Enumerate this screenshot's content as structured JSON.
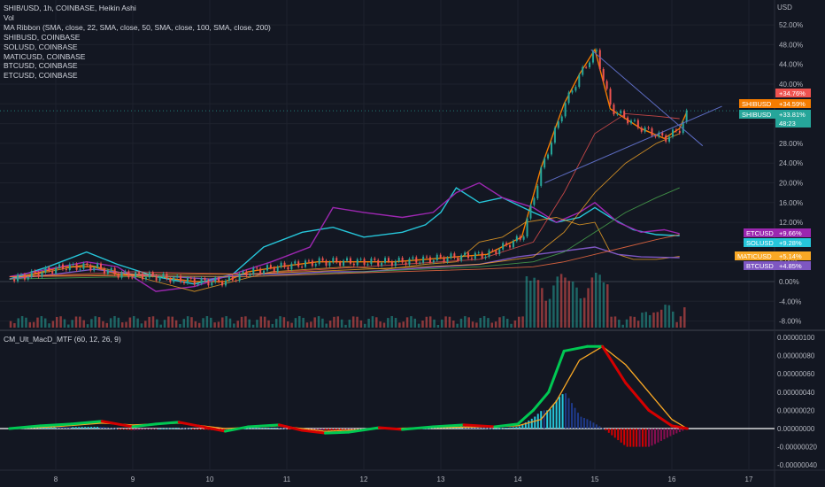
{
  "legend": {
    "main": "SHIB/USD, 1h, COINBASE, Heikin Ashi",
    "vol": "Vol",
    "ma": "MA Ribbon (SMA, close, 22, SMA, close, 50, SMA, close, 100, SMA, close, 200)",
    "s1": "SHIBUSD, COINBASE",
    "s2": "SOLUSD, COINBASE",
    "s3": "MATICUSD, COINBASE",
    "s4": "BTCUSD, COINBASE",
    "s5": "ETCUSD, COINBASE"
  },
  "macd_label": "CM_Ult_MacD_MTF (60, 12, 26, 9)",
  "price_axis": {
    "unit": "USD",
    "ticks": [
      "52.00%",
      "48.00%",
      "44.00%",
      "40.00%",
      "36.00%",
      "32.00%",
      "28.00%",
      "24.00%",
      "20.00%",
      "16.00%",
      "12.00%",
      "8.00%",
      "4.00%",
      "0.00%",
      "-4.00%",
      "-8.00%"
    ]
  },
  "macd_axis": {
    "ticks": [
      "0.00000100",
      "0.00000080",
      "0.00000060",
      "0.00000040",
      "0.00000020",
      "0.00000000",
      "-0.00000020",
      "-0.00000040"
    ]
  },
  "time_axis": {
    "ticks": [
      "8",
      "9",
      "10",
      "11",
      "12",
      "13",
      "14",
      "15",
      "16",
      "17"
    ]
  },
  "tags": [
    {
      "name": "top",
      "label": "",
      "value": "+34.76%",
      "color": "#ef5350"
    },
    {
      "name": "shib-a",
      "label": "SHIBUSD",
      "value": "+34.59%",
      "color": "#f57c00"
    },
    {
      "name": "shib-b",
      "label": "SHIBUSD",
      "value": "+33.81%",
      "color": "#26a69a"
    },
    {
      "name": "timer",
      "label": "",
      "value": "48:23",
      "color": "#26a69a"
    },
    {
      "name": "etc",
      "label": "ETCUSD",
      "value": "+9.66%",
      "color": "#9c27b0"
    },
    {
      "name": "sol",
      "label": "SOLUSD",
      "value": "+9.28%",
      "color": "#26c6da"
    },
    {
      "name": "matic",
      "label": "MATICUSD",
      "value": "+5.14%",
      "color": "#f9a825"
    },
    {
      "name": "btc",
      "label": "BTCUSD",
      "value": "+4.85%",
      "color": "#7e57c2"
    }
  ],
  "colors": {
    "bg": "#131722",
    "grid": "#1e222d",
    "up": "#26a69a",
    "down": "#ef5350",
    "shib": "#f57c00",
    "sol": "#26c6da",
    "etc": "#9c27b0",
    "matic": "#f9a825",
    "btc": "#7e57c2",
    "ma22": "#ef5350",
    "ma50": "#f9a825",
    "ma100": "#4caf50",
    "ma200": "#ff7043",
    "trend": "#5c6bc0",
    "macd_up": "#00c853",
    "macd_dn": "#d50000",
    "signal": "#f9a825"
  },
  "chart_data": {
    "type": "line",
    "x_ticks": [
      "8",
      "9",
      "10",
      "11",
      "12",
      "13",
      "14",
      "15",
      "16",
      "17"
    ],
    "y_unit": "%",
    "ylim": [
      -9,
      55
    ],
    "series": [
      {
        "name": "SHIBUSD",
        "points": [
          [
            7.4,
            0.5
          ],
          [
            7.7,
            1.5
          ],
          [
            8.1,
            3
          ],
          [
            8.5,
            3
          ],
          [
            8.8,
            1.5
          ],
          [
            9.3,
            1
          ],
          [
            9.8,
            0
          ],
          [
            10.2,
            0
          ],
          [
            10.5,
            2
          ],
          [
            10.9,
            3
          ],
          [
            11.4,
            4
          ],
          [
            11.9,
            4
          ],
          [
            12.4,
            4
          ],
          [
            12.8,
            4.5
          ],
          [
            13.2,
            5
          ],
          [
            13.6,
            5.5
          ],
          [
            14.05,
            9
          ],
          [
            14.3,
            23
          ],
          [
            14.6,
            36
          ],
          [
            14.8,
            42
          ],
          [
            15.0,
            47
          ],
          [
            15.2,
            35
          ],
          [
            15.6,
            31
          ],
          [
            15.9,
            29
          ],
          [
            16.1,
            31
          ],
          [
            16.2,
            34.6
          ]
        ]
      },
      {
        "name": "SOLUSD",
        "points": [
          [
            7.4,
            0.5
          ],
          [
            7.9,
            3
          ],
          [
            8.4,
            6
          ],
          [
            8.8,
            3.5
          ],
          [
            9.3,
            1
          ],
          [
            9.8,
            -0.5
          ],
          [
            10.3,
            1.5
          ],
          [
            10.7,
            7
          ],
          [
            11.2,
            10
          ],
          [
            11.6,
            11
          ],
          [
            12.0,
            9
          ],
          [
            12.5,
            10
          ],
          [
            12.8,
            11.5
          ],
          [
            13.0,
            14
          ],
          [
            13.2,
            19
          ],
          [
            13.5,
            16
          ],
          [
            13.8,
            17
          ],
          [
            14.2,
            14
          ],
          [
            14.5,
            12
          ],
          [
            14.8,
            13
          ],
          [
            15.0,
            15
          ],
          [
            15.2,
            13
          ],
          [
            15.5,
            10.5
          ],
          [
            15.8,
            9.5
          ],
          [
            16.1,
            9.3
          ]
        ]
      },
      {
        "name": "ETCUSD",
        "points": [
          [
            7.4,
            1
          ],
          [
            7.9,
            2.5
          ],
          [
            8.4,
            4
          ],
          [
            8.8,
            3
          ],
          [
            9.3,
            -2
          ],
          [
            9.8,
            -1
          ],
          [
            10.3,
            1.5
          ],
          [
            10.8,
            4
          ],
          [
            11.3,
            7
          ],
          [
            11.6,
            15
          ],
          [
            12.0,
            14
          ],
          [
            12.5,
            13
          ],
          [
            12.9,
            14
          ],
          [
            13.2,
            18
          ],
          [
            13.5,
            20
          ],
          [
            13.8,
            17
          ],
          [
            14.2,
            15
          ],
          [
            14.5,
            12
          ],
          [
            14.8,
            14
          ],
          [
            15.0,
            16
          ],
          [
            15.3,
            12
          ],
          [
            15.6,
            10
          ],
          [
            15.9,
            10.5
          ],
          [
            16.1,
            9.7
          ]
        ]
      },
      {
        "name": "MATICUSD",
        "points": [
          [
            7.4,
            0.5
          ],
          [
            7.9,
            2
          ],
          [
            8.4,
            3.5
          ],
          [
            8.8,
            2
          ],
          [
            9.3,
            0
          ],
          [
            9.8,
            -2
          ],
          [
            10.3,
            0
          ],
          [
            10.8,
            2
          ],
          [
            11.3,
            2.5
          ],
          [
            11.8,
            3
          ],
          [
            12.3,
            2.5
          ],
          [
            12.8,
            3.5
          ],
          [
            13.2,
            4
          ],
          [
            13.5,
            8
          ],
          [
            13.8,
            9
          ],
          [
            14.1,
            12
          ],
          [
            14.5,
            13
          ],
          [
            14.8,
            11.5
          ],
          [
            15.0,
            12
          ],
          [
            15.2,
            6
          ],
          [
            15.5,
            4.5
          ],
          [
            15.8,
            4.5
          ],
          [
            16.1,
            5.1
          ]
        ]
      },
      {
        "name": "BTCUSD",
        "points": [
          [
            7.4,
            0.5
          ],
          [
            8.0,
            1.5
          ],
          [
            8.5,
            2.5
          ],
          [
            9.0,
            1.5
          ],
          [
            9.5,
            1
          ],
          [
            10.0,
            0.5
          ],
          [
            10.5,
            1.5
          ],
          [
            11.0,
            1.5
          ],
          [
            11.5,
            2
          ],
          [
            12.0,
            2
          ],
          [
            12.5,
            2.5
          ],
          [
            13.0,
            3
          ],
          [
            13.5,
            3.5
          ],
          [
            14.0,
            5
          ],
          [
            14.5,
            6
          ],
          [
            15.0,
            7
          ],
          [
            15.3,
            5.5
          ],
          [
            15.6,
            5
          ],
          [
            16.1,
            4.85
          ]
        ]
      },
      {
        "name": "MA22",
        "points": [
          [
            7.4,
            1
          ],
          [
            9.0,
            2
          ],
          [
            10.5,
            1.5
          ],
          [
            12.0,
            3
          ],
          [
            13.5,
            4.5
          ],
          [
            14.2,
            8
          ],
          [
            14.6,
            18
          ],
          [
            15.0,
            30
          ],
          [
            15.4,
            34
          ],
          [
            15.8,
            33.5
          ],
          [
            16.1,
            33
          ]
        ]
      },
      {
        "name": "MA50",
        "points": [
          [
            7.4,
            1
          ],
          [
            9.0,
            1.5
          ],
          [
            10.5,
            1.5
          ],
          [
            12.0,
            2.5
          ],
          [
            13.5,
            3.5
          ],
          [
            14.2,
            5
          ],
          [
            14.6,
            10
          ],
          [
            15.0,
            18
          ],
          [
            15.4,
            24
          ],
          [
            15.8,
            28
          ],
          [
            16.1,
            30
          ]
        ]
      },
      {
        "name": "MA100",
        "points": [
          [
            7.4,
            0.5
          ],
          [
            9.0,
            1
          ],
          [
            10.5,
            1
          ],
          [
            12.0,
            2
          ],
          [
            13.5,
            3
          ],
          [
            14.2,
            4
          ],
          [
            14.6,
            6
          ],
          [
            15.0,
            10
          ],
          [
            15.4,
            14
          ],
          [
            15.8,
            17
          ],
          [
            16.1,
            19
          ]
        ]
      },
      {
        "name": "MA200",
        "points": [
          [
            7.4,
            1
          ],
          [
            9.0,
            1.2
          ],
          [
            10.5,
            1
          ],
          [
            12.0,
            1.8
          ],
          [
            13.5,
            2.5
          ],
          [
            14.2,
            3
          ],
          [
            14.6,
            4
          ],
          [
            15.0,
            5.5
          ],
          [
            15.4,
            7
          ],
          [
            15.8,
            8.5
          ],
          [
            16.1,
            9.5
          ]
        ]
      }
    ],
    "macd": {
      "ylim": [
        -4.5e-07,
        1e-06
      ],
      "macd_line": [
        [
          7.4,
          0
        ],
        [
          7.8,
          3e-08
        ],
        [
          8.2,
          5e-08
        ],
        [
          8.6,
          8e-08
        ],
        [
          9.0,
          2e-08
        ],
        [
          9.3,
          5e-08
        ],
        [
          9.6,
          7e-08
        ],
        [
          9.9,
          2e-08
        ],
        [
          10.2,
          -3e-08
        ],
        [
          10.5,
          2e-08
        ],
        [
          10.9,
          4e-08
        ],
        [
          11.2,
          -2e-08
        ],
        [
          11.5,
          -5e-08
        ],
        [
          11.8,
          -4e-08
        ],
        [
          12.2,
          1e-08
        ],
        [
          12.5,
          -1e-08
        ],
        [
          12.9,
          2e-08
        ],
        [
          13.3,
          4e-08
        ],
        [
          13.7,
          2e-08
        ],
        [
          14.0,
          5e-08
        ],
        [
          14.2,
          2e-07
        ],
        [
          14.4,
          4e-07
        ],
        [
          14.6,
          8.5e-07
        ],
        [
          14.9,
          9e-07
        ],
        [
          15.1,
          9e-07
        ],
        [
          15.4,
          5e-07
        ],
        [
          15.7,
          2e-07
        ],
        [
          16.0,
          3e-08
        ],
        [
          16.2,
          0
        ]
      ],
      "signal_line": [
        [
          7.4,
          0
        ],
        [
          8.0,
          2e-08
        ],
        [
          8.6,
          6e-08
        ],
        [
          9.0,
          4e-08
        ],
        [
          9.6,
          6e-08
        ],
        [
          10.2,
          0
        ],
        [
          10.9,
          3e-08
        ],
        [
          11.5,
          -3e-08
        ],
        [
          12.2,
          0
        ],
        [
          12.9,
          1e-08
        ],
        [
          13.7,
          2e-08
        ],
        [
          14.0,
          3e-08
        ],
        [
          14.3,
          1e-07
        ],
        [
          14.5,
          3e-07
        ],
        [
          14.8,
          7.5e-07
        ],
        [
          15.1,
          9e-07
        ],
        [
          15.4,
          7e-07
        ],
        [
          15.7,
          4e-07
        ],
        [
          16.0,
          1e-07
        ],
        [
          16.2,
          0
        ]
      ]
    }
  }
}
